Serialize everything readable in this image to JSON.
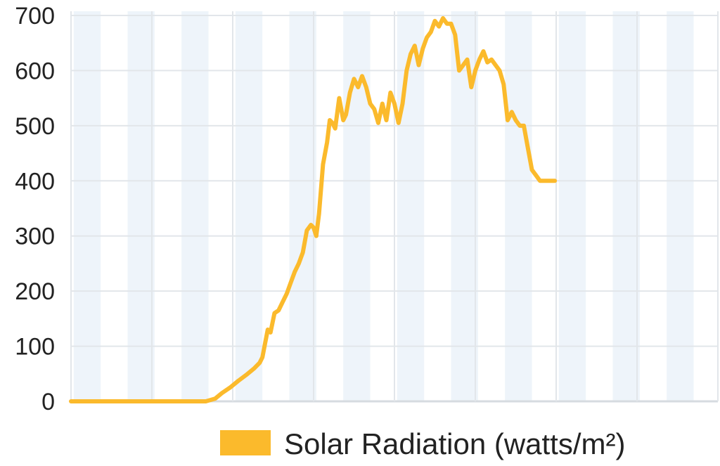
{
  "chart_data": {
    "type": "area",
    "title": "",
    "xlabel": "",
    "ylabel": "",
    "ylim": [
      0,
      700
    ],
    "y_ticks": [
      "0",
      "100",
      "200",
      "300",
      "400",
      "500",
      "600",
      "700"
    ],
    "x_range": [
      0,
      24
    ],
    "grid": true,
    "legend_position": "bottom-right",
    "series": [
      {
        "name": "Solar Radiation (watts/m²)",
        "color": "#FBBA2C",
        "x": [
          0,
          2,
          4,
          5,
          5.35,
          5.6,
          5.9,
          6.2,
          6.5,
          6.8,
          7.0,
          7.1,
          7.2,
          7.3,
          7.4,
          7.55,
          7.7,
          7.85,
          8.0,
          8.15,
          8.3,
          8.45,
          8.6,
          8.75,
          8.9,
          9.0,
          9.1,
          9.2,
          9.35,
          9.5,
          9.6,
          9.7,
          9.8,
          9.95,
          10.1,
          10.2,
          10.35,
          10.5,
          10.65,
          10.8,
          10.95,
          11.1,
          11.25,
          11.4,
          11.55,
          11.7,
          11.85,
          12.0,
          12.15,
          12.3,
          12.45,
          12.6,
          12.75,
          12.9,
          13.05,
          13.2,
          13.35,
          13.5,
          13.65,
          13.8,
          13.95,
          14.1,
          14.25,
          14.4,
          14.55,
          14.7,
          14.85,
          15.0,
          15.15,
          15.3,
          15.45,
          15.6,
          15.75,
          15.9,
          16.05,
          16.2,
          16.35,
          16.5,
          16.65,
          16.8,
          16.95,
          17.1,
          17.25,
          17.4,
          17.55,
          17.7,
          17.85,
          17.95
        ],
        "values": [
          0,
          0,
          0,
          0,
          5,
          15,
          25,
          37,
          48,
          60,
          70,
          80,
          105,
          130,
          125,
          160,
          165,
          180,
          195,
          215,
          235,
          250,
          270,
          310,
          320,
          315,
          300,
          340,
          430,
          470,
          510,
          505,
          495,
          550,
          510,
          520,
          560,
          585,
          570,
          590,
          570,
          540,
          530,
          505,
          540,
          510,
          560,
          540,
          505,
          540,
          600,
          630,
          645,
          610,
          640,
          660,
          670,
          690,
          680,
          695,
          685,
          685,
          665,
          600,
          610,
          620,
          570,
          600,
          620,
          635,
          615,
          620,
          610,
          600,
          575,
          510,
          525,
          510,
          500,
          500,
          460,
          420,
          410,
          400,
          400,
          400,
          400,
          400
        ]
      }
    ]
  }
}
